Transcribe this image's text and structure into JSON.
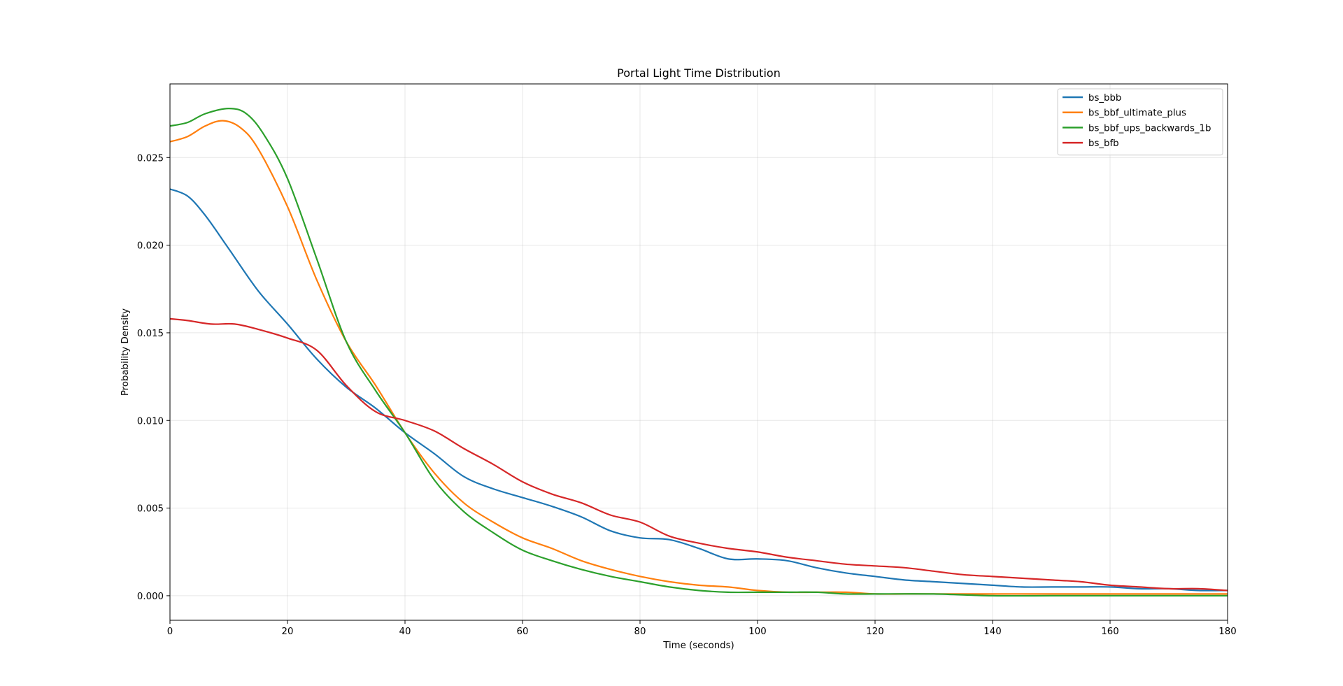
{
  "chart_data": {
    "type": "line",
    "title": "Portal Light Time Distribution",
    "xlabel": "Time (seconds)",
    "ylabel": "Probability Density",
    "xlim": [
      0,
      180
    ],
    "ylim": [
      -0.0014,
      0.0292
    ],
    "xticks": [
      0,
      20,
      40,
      60,
      80,
      100,
      120,
      140,
      160,
      180
    ],
    "xtick_labels": [
      "0",
      "20",
      "40",
      "60",
      "80",
      "100",
      "120",
      "140",
      "160",
      "180"
    ],
    "yticks": [
      0,
      0.005,
      0.01,
      0.015,
      0.02,
      0.025
    ],
    "ytick_labels": [
      "0.000",
      "0.005",
      "0.010",
      "0.015",
      "0.020",
      "0.025"
    ],
    "grid": true,
    "legend_position": "top-right",
    "series": [
      {
        "name": "bs_bbb",
        "color": "#1f77b4",
        "x": [
          0,
          3,
          6,
          10,
          15,
          20,
          25,
          30,
          35,
          40,
          45,
          50,
          55,
          60,
          65,
          70,
          75,
          80,
          85,
          90,
          95,
          100,
          105,
          110,
          115,
          120,
          125,
          130,
          135,
          140,
          145,
          150,
          155,
          160,
          165,
          170,
          175,
          180
        ],
        "y": [
          0.0232,
          0.0228,
          0.0217,
          0.0198,
          0.0174,
          0.0155,
          0.0135,
          0.0119,
          0.0107,
          0.0093,
          0.0081,
          0.0068,
          0.0061,
          0.0056,
          0.0051,
          0.0045,
          0.0037,
          0.0033,
          0.0032,
          0.0027,
          0.0021,
          0.0021,
          0.002,
          0.0016,
          0.0013,
          0.0011,
          0.0009,
          0.0008,
          0.0007,
          0.0006,
          0.0005,
          0.0005,
          0.0005,
          0.0005,
          0.0004,
          0.0004,
          0.0003,
          0.0003
        ]
      },
      {
        "name": "bs_bbf_ultimate_plus",
        "color": "#ff7f0e",
        "x": [
          0,
          3,
          6,
          9,
          12,
          15,
          20,
          25,
          30,
          35,
          40,
          45,
          50,
          55,
          60,
          65,
          70,
          75,
          80,
          85,
          90,
          95,
          100,
          105,
          110,
          115,
          120,
          125,
          130,
          140,
          150,
          160,
          170,
          180
        ],
        "y": [
          0.0259,
          0.0262,
          0.0268,
          0.0271,
          0.0267,
          0.0255,
          0.0222,
          0.018,
          0.0145,
          0.012,
          0.0093,
          0.007,
          0.0053,
          0.0042,
          0.0033,
          0.0027,
          0.002,
          0.0015,
          0.0011,
          0.0008,
          0.0006,
          0.0005,
          0.0003,
          0.0002,
          0.0002,
          0.0002,
          0.0001,
          0.0001,
          0.0001,
          0.0001,
          0.0001,
          0.0001,
          0.0001,
          0.0001
        ]
      },
      {
        "name": "bs_bbf_ups_backwards_1b",
        "color": "#2ca02c",
        "x": [
          0,
          3,
          6,
          10,
          13,
          16,
          20,
          25,
          30,
          35,
          40,
          45,
          50,
          55,
          60,
          65,
          70,
          75,
          80,
          85,
          90,
          95,
          100,
          105,
          110,
          115,
          120,
          130,
          140,
          150,
          160,
          170,
          180
        ],
        "y": [
          0.0268,
          0.027,
          0.0275,
          0.0278,
          0.0275,
          0.0263,
          0.0238,
          0.0192,
          0.0145,
          0.0117,
          0.0093,
          0.0066,
          0.0048,
          0.0036,
          0.0026,
          0.002,
          0.0015,
          0.0011,
          0.0008,
          0.0005,
          0.0003,
          0.0002,
          0.0002,
          0.0002,
          0.0002,
          0.0001,
          0.0001,
          0.0001,
          0.0,
          0.0,
          0.0,
          0.0,
          0.0
        ]
      },
      {
        "name": "bs_bfb",
        "color": "#d62728",
        "x": [
          0,
          3,
          7,
          11,
          15,
          20,
          25,
          30,
          35,
          40,
          45,
          50,
          55,
          60,
          65,
          70,
          75,
          80,
          85,
          90,
          95,
          100,
          105,
          110,
          115,
          120,
          125,
          130,
          135,
          140,
          145,
          150,
          155,
          160,
          165,
          170,
          175,
          180
        ],
        "y": [
          0.0158,
          0.0157,
          0.0155,
          0.0155,
          0.0152,
          0.0147,
          0.014,
          0.012,
          0.0105,
          0.01,
          0.0094,
          0.0084,
          0.0075,
          0.0065,
          0.0058,
          0.0053,
          0.0046,
          0.0042,
          0.0034,
          0.003,
          0.0027,
          0.0025,
          0.0022,
          0.002,
          0.0018,
          0.0017,
          0.0016,
          0.0014,
          0.0012,
          0.0011,
          0.001,
          0.0009,
          0.0008,
          0.0006,
          0.0005,
          0.0004,
          0.0004,
          0.0003
        ]
      }
    ]
  }
}
